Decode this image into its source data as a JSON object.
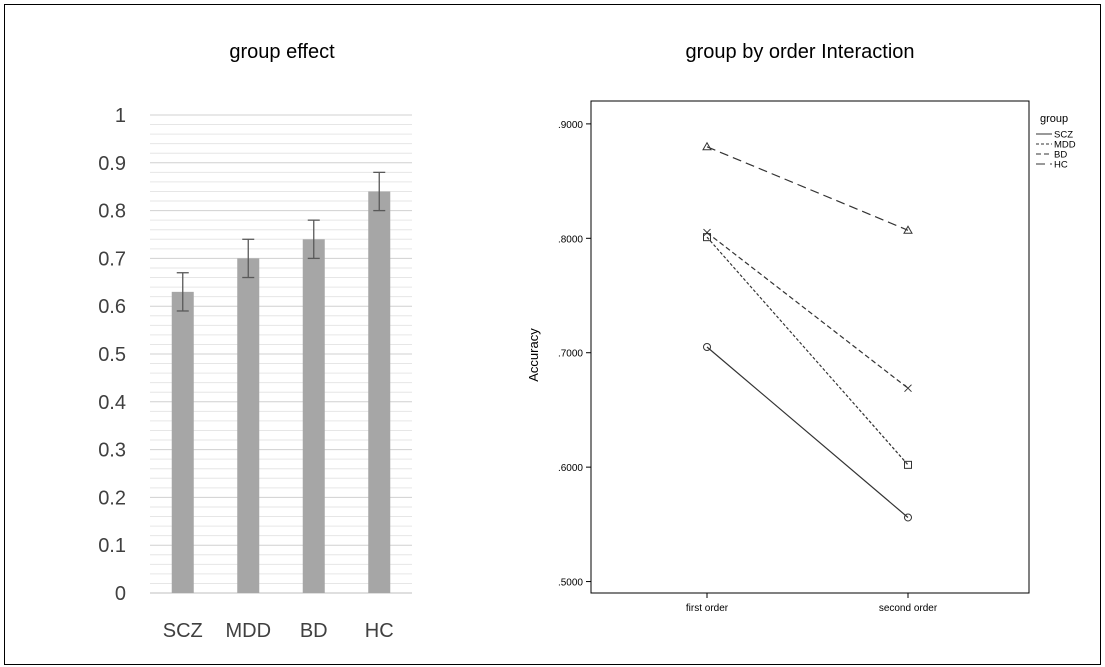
{
  "chart_data": [
    {
      "type": "bar",
      "title": "group effect",
      "categories": [
        "SCZ",
        "MDD",
        "BD",
        "HC"
      ],
      "values": [
        0.63,
        0.7,
        0.74,
        0.84
      ],
      "error": [
        0.04,
        0.04,
        0.04,
        0.04
      ],
      "ylim": [
        0,
        1
      ],
      "yticks": [
        "0",
        "0.1",
        "0.2",
        "0.3",
        "0.4",
        "0.5",
        "0.6",
        "0.7",
        "0.8",
        "0.9",
        "1"
      ],
      "grid": true,
      "bar_color": "#a6a6a6"
    },
    {
      "type": "line",
      "title": "group by order Interaction",
      "ylabel": "Accuracy",
      "categories": [
        "first order",
        "second order"
      ],
      "ylim": [
        0.49,
        0.92
      ],
      "yticks": [
        ".5000",
        ".6000",
        ".7000",
        ".8000",
        ".9000"
      ],
      "legend_title": "group",
      "legend_position": "top-right",
      "series": [
        {
          "name": "SCZ",
          "values": [
            0.705,
            0.556
          ],
          "marker": "circle",
          "dash": "solid"
        },
        {
          "name": "MDD",
          "values": [
            0.801,
            0.602
          ],
          "marker": "square",
          "dash": "short"
        },
        {
          "name": "BD",
          "values": [
            0.805,
            0.669
          ],
          "marker": "x",
          "dash": "medium"
        },
        {
          "name": "HC",
          "values": [
            0.88,
            0.807
          ],
          "marker": "triangle",
          "dash": "long"
        }
      ]
    }
  ]
}
